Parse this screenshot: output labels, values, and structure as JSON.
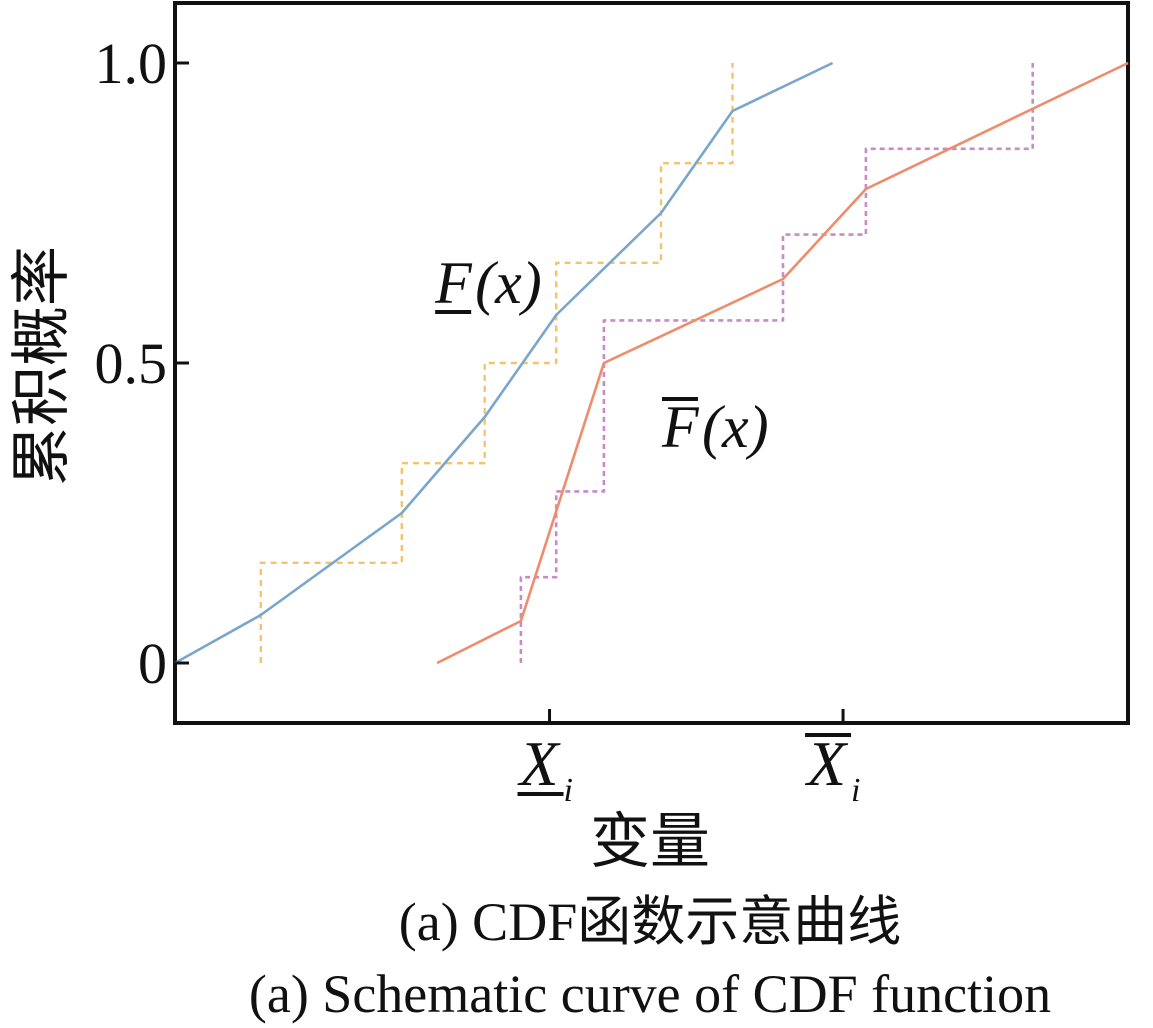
{
  "chart_data": {
    "type": "line",
    "xlabel": "变量",
    "ylabel": "累积概率",
    "ylim": [
      -0.1,
      1.1
    ],
    "xlim": [
      0,
      100
    ],
    "y_ticks": [
      {
        "value": 0,
        "label": "0"
      },
      {
        "value": 0.5,
        "label": "0.5"
      },
      {
        "value": 1.0,
        "label": "1.0"
      }
    ],
    "x_ticks": [
      {
        "value": 39.3,
        "label": "X_i (lower)",
        "symbol": "X",
        "subscript": "i",
        "bar": "under"
      },
      {
        "value": 70.1,
        "label": "X_i (upper)",
        "symbol": "X",
        "subscript": "i",
        "bar": "over"
      }
    ],
    "grid": false,
    "colors": {
      "lower_cdf": "#7aa6cc",
      "lower_step": "#f4c46a",
      "upper_cdf": "#ee8c6c",
      "upper_step": "#c98ac9",
      "axis": "#111111"
    },
    "series": [
      {
        "style": "solid",
        "color_key": "lower_cdf",
        "x": [
          0,
          9.0,
          23.8,
          32.5,
          40.0,
          51.0,
          58.5,
          69.0
        ],
        "y": [
          0.0,
          0.08,
          0.25,
          0.41,
          0.58,
          0.75,
          0.92,
          1.0
        ]
      },
      {
        "style": "dashed-step",
        "color_key": "lower_step",
        "x": [
          9.0,
          9.0,
          23.8,
          23.8,
          32.5,
          32.5,
          40.0,
          40.0,
          51.0,
          51.0,
          58.5,
          58.5
        ],
        "y": [
          0.0,
          0.167,
          0.167,
          0.333,
          0.333,
          0.5,
          0.5,
          0.667,
          0.667,
          0.833,
          0.833,
          1.0
        ]
      },
      {
        "style": "solid",
        "color_key": "upper_cdf",
        "x": [
          27.5,
          36.3,
          45.0,
          63.8,
          72.5,
          100
        ],
        "y": [
          0.0,
          0.07,
          0.5,
          0.64,
          0.79,
          1.0
        ]
      },
      {
        "style": "dotted-step",
        "color_key": "upper_step",
        "x": [
          36.3,
          36.3,
          40.0,
          40.0,
          45.0,
          45.0,
          63.8,
          63.8,
          72.5,
          72.5,
          90.0,
          90.0
        ],
        "y": [
          0.0,
          0.143,
          0.143,
          0.286,
          0.286,
          0.571,
          0.571,
          0.714,
          0.714,
          0.857,
          0.857,
          1.0
        ]
      }
    ],
    "annotations": [
      {
        "symbol": "F",
        "bar": "under",
        "arg": "(x)",
        "x": 27.3,
        "y": 0.6
      },
      {
        "symbol": "F",
        "bar": "over",
        "arg": "(x)",
        "x": 51.1,
        "y": 0.36
      }
    ],
    "captions": [
      "(a)  CDF函数示意曲线",
      "(a)  Schematic curve of CDF function"
    ]
  }
}
